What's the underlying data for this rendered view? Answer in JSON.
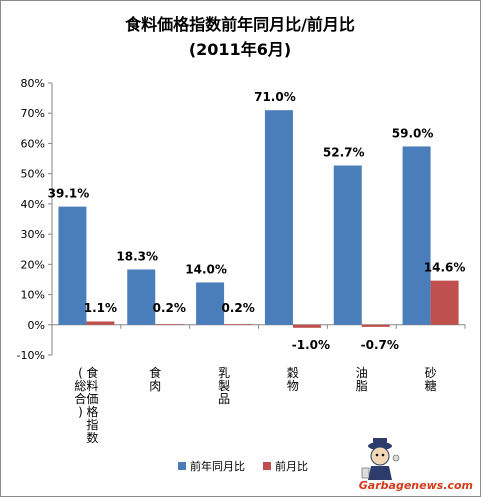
{
  "chart_data": {
    "type": "bar",
    "title": "食料価格指数前年同月比/前月比",
    "subtitle": "(2011年6月)",
    "categories": [
      "食料価格指数 (総合)",
      "食肉",
      "乳製品",
      "穀物",
      "油脂",
      "砂糖"
    ],
    "category_lines": [
      [
        "食料価格指数",
        "(総合)"
      ],
      [
        "食肉"
      ],
      [
        "乳製品"
      ],
      [
        "穀物"
      ],
      [
        "油脂"
      ],
      [
        "砂糖"
      ]
    ],
    "series": [
      {
        "name": "前年同月比",
        "color": "#4a7ebb",
        "values": [
          39.1,
          18.3,
          14.0,
          71.0,
          52.7,
          59.0
        ],
        "labels": [
          "39.1%",
          "18.3%",
          "14.0%",
          "71.0%",
          "52.7%",
          "59.0%"
        ]
      },
      {
        "name": "前月比",
        "color": "#c0504d",
        "values": [
          1.1,
          0.2,
          0.2,
          -1.0,
          -0.7,
          14.6
        ],
        "labels": [
          "1.1%",
          "0.2%",
          "0.2%",
          "-1.0%",
          "-0.7%",
          "14.6%"
        ]
      }
    ],
    "ylim": [
      -10,
      80
    ],
    "yticks": [
      -10,
      0,
      10,
      20,
      30,
      40,
      50,
      60,
      70,
      80
    ],
    "ytick_labels": [
      "-10%",
      "0%",
      "10%",
      "20%",
      "30%",
      "40%",
      "50%",
      "60%",
      "70%",
      "80%"
    ],
    "xlabel": "",
    "ylabel": "",
    "grid": false,
    "legend_position": "bottom"
  },
  "watermark": {
    "text": "Garbagenews.com",
    "icon": "mascot-figure-icon"
  }
}
